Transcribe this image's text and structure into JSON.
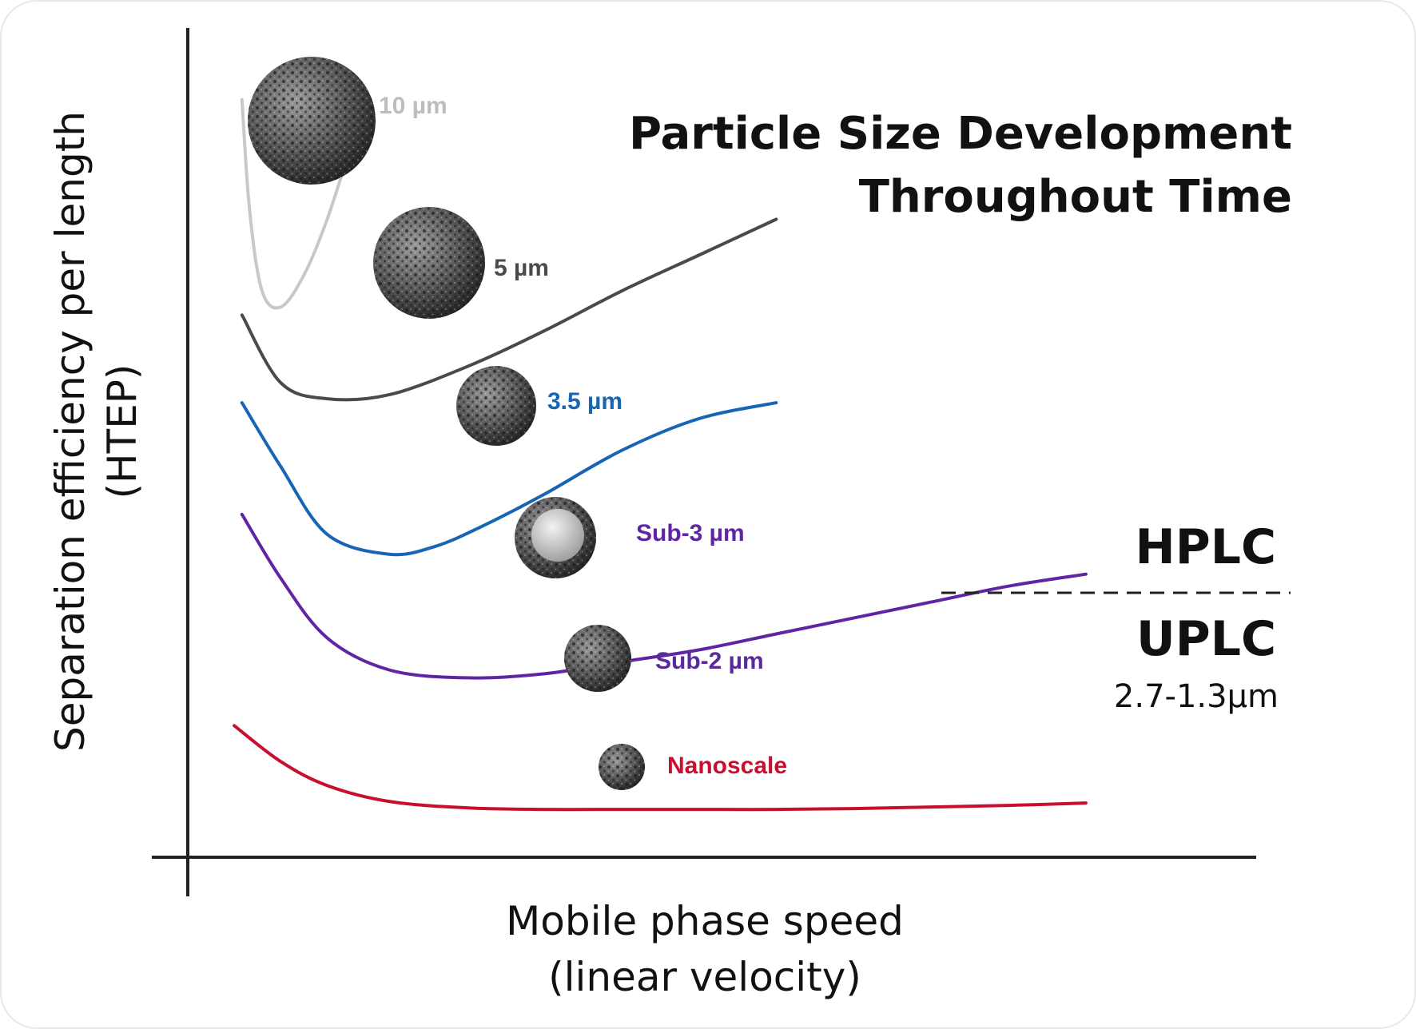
{
  "chart_data": {
    "type": "line",
    "title": [
      "Particle Size Development",
      "Throughout Time"
    ],
    "xlabel": [
      "Mobile phase speed",
      "(linear velocity)"
    ],
    "ylabel": [
      "Separation efficiency per length",
      "(HTEP)"
    ],
    "grid": false,
    "legend": "inline",
    "series": [
      {
        "name": "10 µm",
        "color": "#c8c8c8",
        "x": [
          0.05,
          0.1,
          0.18,
          0.3,
          0.45,
          0.6,
          0.75,
          0.85
        ],
        "y": [
          9.5,
          8.1,
          7.1,
          6.9,
          7.3,
          8.0,
          8.9,
          9.5
        ]
      },
      {
        "name": "5 µm",
        "color": "#4a4a4a",
        "x": [
          0.05,
          0.3,
          0.6,
          1.0,
          1.5,
          2.0,
          2.5,
          3.0,
          3.5
        ],
        "y": [
          6.8,
          5.95,
          5.75,
          5.8,
          6.15,
          6.6,
          7.1,
          7.55,
          8.0
        ]
      },
      {
        "name": "3.5 µm",
        "color": "#1865b5",
        "x": [
          0.05,
          0.3,
          0.6,
          1.0,
          1.3,
          1.6,
          2.0,
          2.5,
          3.0,
          3.5
        ],
        "y": [
          5.7,
          4.9,
          4.05,
          3.8,
          3.9,
          4.15,
          4.55,
          5.1,
          5.5,
          5.7
        ]
      },
      {
        "name": "Sub-3 µm",
        "color": "#6024a4",
        "x": [
          0.05,
          0.3,
          0.6,
          1.0,
          1.5,
          2.0,
          2.5,
          3.0,
          3.5,
          4.0,
          4.5,
          5.0,
          5.5
        ],
        "y": [
          4.3,
          3.5,
          2.75,
          2.35,
          2.25,
          2.3,
          2.45,
          2.6,
          2.8,
          3.0,
          3.2,
          3.4,
          3.55
        ]
      },
      {
        "name": "Sub-2 µm",
        "color": "#5a2a9a",
        "x": [],
        "y": []
      },
      {
        "name": "Nanoscale",
        "color": "#c8102e",
        "x": [
          0.0,
          0.3,
          0.6,
          1.0,
          1.5,
          2.0,
          2.5,
          3.0,
          3.5,
          4.0,
          4.5,
          5.0,
          5.5
        ],
        "y": [
          1.65,
          1.2,
          0.9,
          0.7,
          0.62,
          0.6,
          0.6,
          0.6,
          0.6,
          0.61,
          0.63,
          0.65,
          0.68
        ]
      }
    ],
    "xlim": [
      -0.3,
      6.6
    ],
    "ylim": [
      0,
      10.4
    ],
    "annotations": {
      "hplc": "HPLC",
      "uplc": "UPLC",
      "uplc_range": "2.7-1.3µm"
    },
    "particle_icons": [
      {
        "label": "10 µm",
        "relative_size": 1.0
      },
      {
        "label": "5 µm",
        "relative_size": 0.87
      },
      {
        "label": "3.5 µm",
        "relative_size": 0.62
      },
      {
        "label": "Sub-3 µm",
        "relative_size": 0.64,
        "core_shell": true
      },
      {
        "label": "Sub-2 µm",
        "relative_size": 0.53
      },
      {
        "label": "Nanoscale",
        "relative_size": 0.36
      }
    ]
  }
}
